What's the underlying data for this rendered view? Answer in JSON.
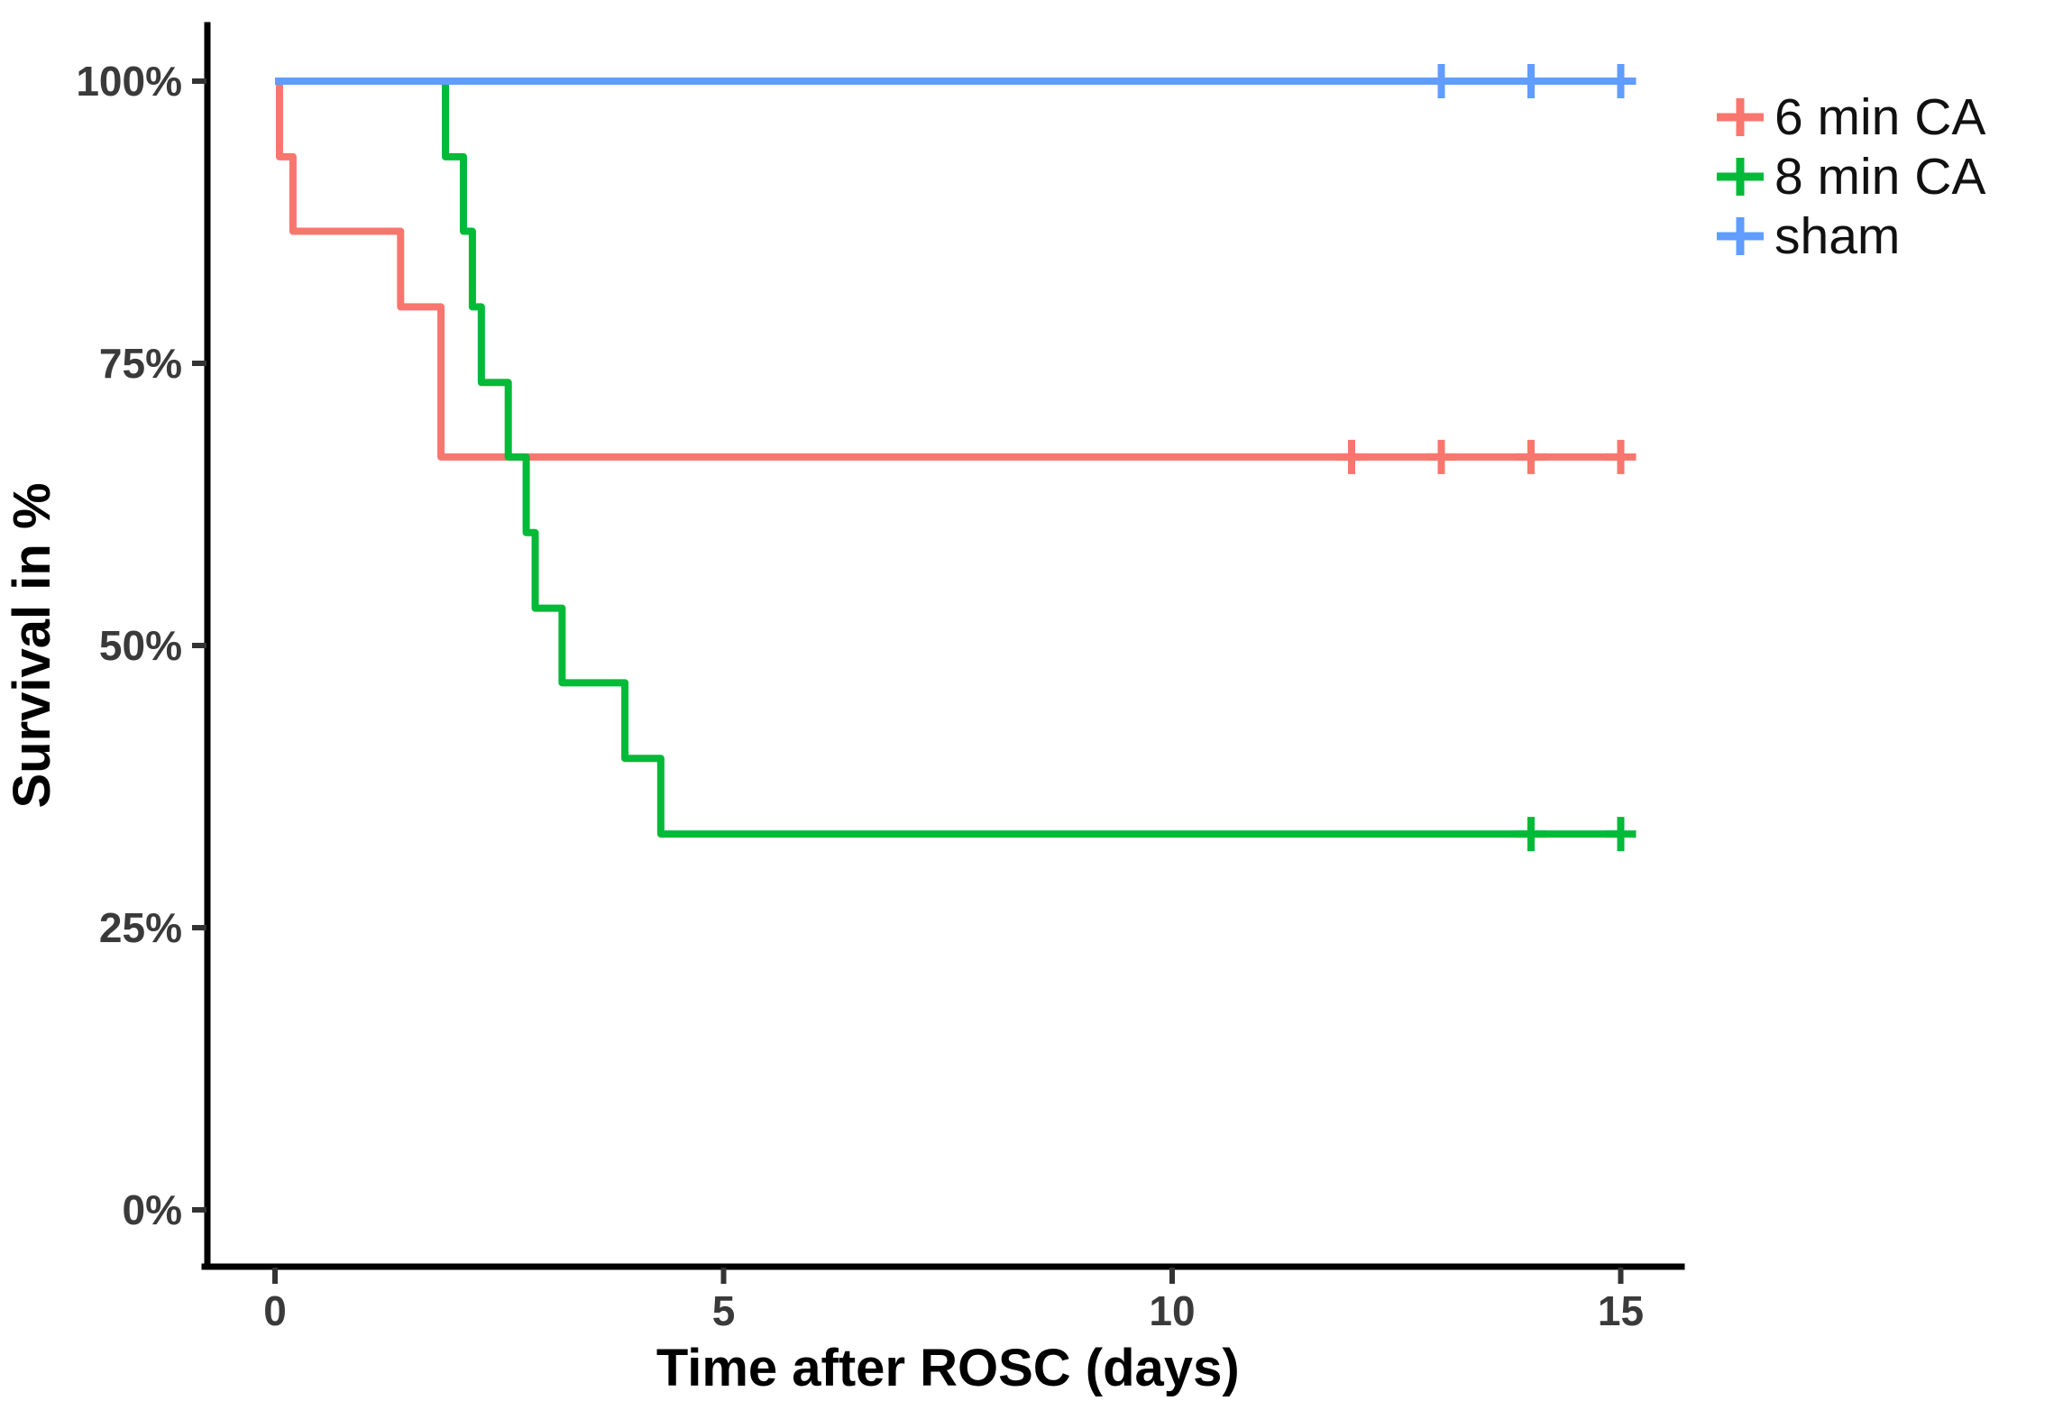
{
  "figure": {
    "background": "#ffffff",
    "axis_color": "#000000",
    "tick_label_color": "#3a3a3a"
  },
  "chart_data": {
    "type": "line",
    "subtype": "kaplan-meier-step",
    "title": "",
    "xlabel": "Time after ROSC (days)",
    "ylabel": "Survival in %",
    "grid": false,
    "x_axis": {
      "min": 0,
      "max": 15,
      "ticks": [
        0,
        5,
        10,
        15
      ],
      "tick_labels": [
        "0",
        "5",
        "10",
        "15"
      ]
    },
    "y_axis": {
      "min": 0,
      "max": 100,
      "ticks": [
        0,
        25,
        50,
        75,
        100
      ],
      "tick_labels": [
        "0%",
        "25%",
        "50%",
        "75%",
        "100%"
      ]
    },
    "legend": {
      "position": "top-right",
      "marker": "+"
    },
    "series": [
      {
        "name": "6 min CA",
        "color": "#F8766D",
        "start_level": 100,
        "steps": [
          [
            0.05,
            93.3
          ],
          [
            0.2,
            86.7
          ],
          [
            1.4,
            80
          ],
          [
            1.85,
            66.7
          ]
        ],
        "end_time": 15,
        "final_level": 66.7,
        "censor_times": [
          12,
          13,
          14,
          15
        ],
        "censor_level": 66.7
      },
      {
        "name": "8 min CA",
        "color": "#00BA38",
        "start_level": 100,
        "steps": [
          [
            1.9,
            93.3
          ],
          [
            2.1,
            86.7
          ],
          [
            2.2,
            80
          ],
          [
            2.3,
            73.3
          ],
          [
            2.6,
            66.7
          ],
          [
            2.8,
            60
          ],
          [
            2.9,
            53.3
          ],
          [
            3.2,
            46.7
          ],
          [
            3.9,
            40
          ],
          [
            4.3,
            33.3
          ]
        ],
        "end_time": 15,
        "final_level": 33.3,
        "censor_times": [
          14,
          15
        ],
        "censor_level": 33.3
      },
      {
        "name": "sham",
        "color": "#619CFF",
        "start_level": 100,
        "steps": [],
        "end_time": 15,
        "final_level": 100,
        "censor_times": [
          13,
          14,
          15
        ],
        "censor_level": 100
      }
    ]
  }
}
